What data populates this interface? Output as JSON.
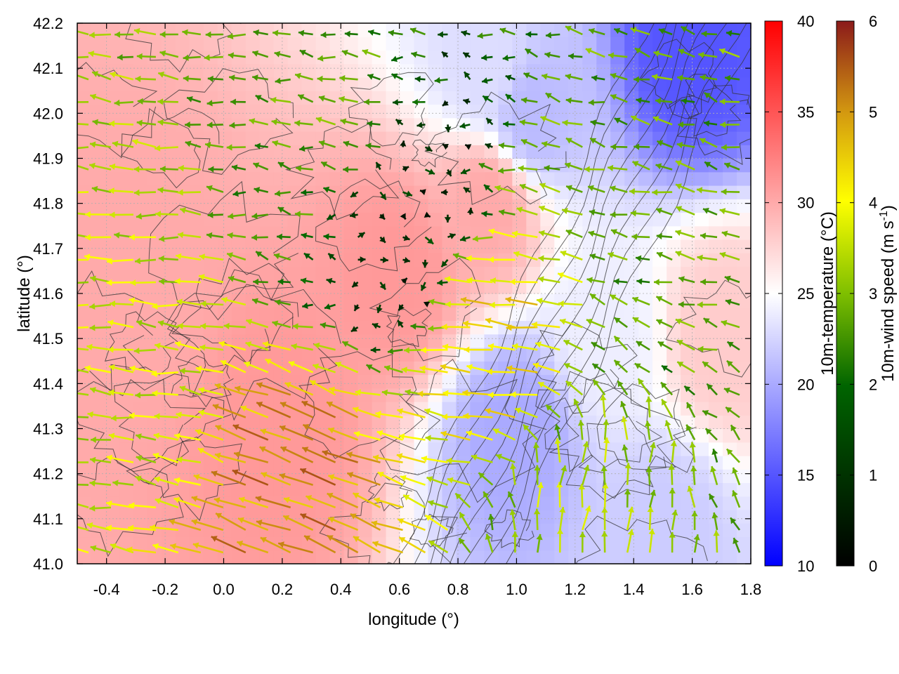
{
  "chart_data": {
    "type": "vector-field-heatmap",
    "title": "",
    "xlabel": "longitude (°)",
    "ylabel": "latitude (°)",
    "xlim": [
      -0.5,
      1.8
    ],
    "ylim": [
      41.0,
      42.2
    ],
    "x_ticks": [
      "-0.4",
      "-0.2",
      "0.0",
      "0.2",
      "0.4",
      "0.6",
      "0.8",
      "1.0",
      "1.2",
      "1.4",
      "1.6",
      "1.8"
    ],
    "x_tick_values": [
      -0.4,
      -0.2,
      0.0,
      0.2,
      0.4,
      0.6,
      0.8,
      1.0,
      1.2,
      1.4,
      1.6,
      1.8
    ],
    "y_ticks": [
      "41.0",
      "41.1",
      "41.2",
      "41.3",
      "41.4",
      "41.5",
      "41.6",
      "41.7",
      "41.8",
      "41.9",
      "42.0",
      "42.1",
      "42.2"
    ],
    "y_tick_values": [
      41.0,
      41.1,
      41.2,
      41.3,
      41.4,
      41.5,
      41.6,
      41.7,
      41.8,
      41.9,
      42.0,
      42.1,
      42.2
    ],
    "grid": true,
    "temperature_colorbar": {
      "label": "10m-temperature (°C)",
      "range": [
        10,
        40
      ],
      "ticks": [
        "10",
        "15",
        "20",
        "25",
        "30",
        "35",
        "40"
      ],
      "tick_values": [
        10,
        15,
        20,
        25,
        30,
        35,
        40
      ],
      "colors": [
        "#0000ff",
        "#ffffff",
        "#ff0000"
      ]
    },
    "wind_colorbar": {
      "label_main": "10m-wind speed (m s",
      "label_sup": "-1",
      "label_end": ")",
      "range": [
        0,
        6
      ],
      "ticks": [
        "0",
        "1",
        "2",
        "3",
        "4",
        "5",
        "6"
      ],
      "tick_values": [
        0,
        1,
        2,
        3,
        4,
        5,
        6
      ],
      "colors": [
        "#000000",
        "#006400",
        "#7fbf00",
        "#ffff00",
        "#d49a10",
        "#8b1a1a"
      ]
    },
    "temperature_regions": [
      {
        "lon": -0.3,
        "lat": 41.6,
        "temp": 30
      },
      {
        "lon": 0.2,
        "lat": 41.3,
        "temp": 31
      },
      {
        "lon": 0.6,
        "lat": 41.65,
        "temp": 31
      },
      {
        "lon": 0.9,
        "lat": 41.8,
        "temp": 30
      },
      {
        "lon": 0.9,
        "lat": 42.1,
        "temp": 23
      },
      {
        "lon": 1.05,
        "lat": 42.0,
        "temp": 21
      },
      {
        "lon": 1.6,
        "lat": 42.15,
        "temp": 15
      },
      {
        "lon": 1.0,
        "lat": 41.3,
        "temp": 20
      },
      {
        "lon": 1.5,
        "lat": 41.08,
        "temp": 22
      },
      {
        "lon": 1.3,
        "lat": 41.5,
        "temp": 24
      },
      {
        "lon": 1.7,
        "lat": 41.5,
        "temp": 28
      }
    ],
    "wind_regions": [
      {
        "lon": -0.3,
        "lat": 41.5,
        "u": -3.0,
        "v": 0.3,
        "speed": 3.2
      },
      {
        "lon": 0.3,
        "lat": 41.15,
        "u": -4.5,
        "v": 1.8,
        "speed": 5.5
      },
      {
        "lon": 0.6,
        "lat": 41.75,
        "u": 0.5,
        "v": -0.2,
        "speed": 1.0
      },
      {
        "lon": 0.4,
        "lat": 41.95,
        "u": -2.0,
        "v": 0.3,
        "speed": 2.2
      },
      {
        "lon": 1.2,
        "lat": 41.1,
        "u": 0.4,
        "v": 2.8,
        "speed": 3.0
      },
      {
        "lon": 1.55,
        "lat": 41.8,
        "u": -2.0,
        "v": 0.5,
        "speed": 2.2
      },
      {
        "lon": 0.95,
        "lat": 41.45,
        "u": -4.0,
        "v": 0.5,
        "speed": 4.5
      }
    ]
  }
}
